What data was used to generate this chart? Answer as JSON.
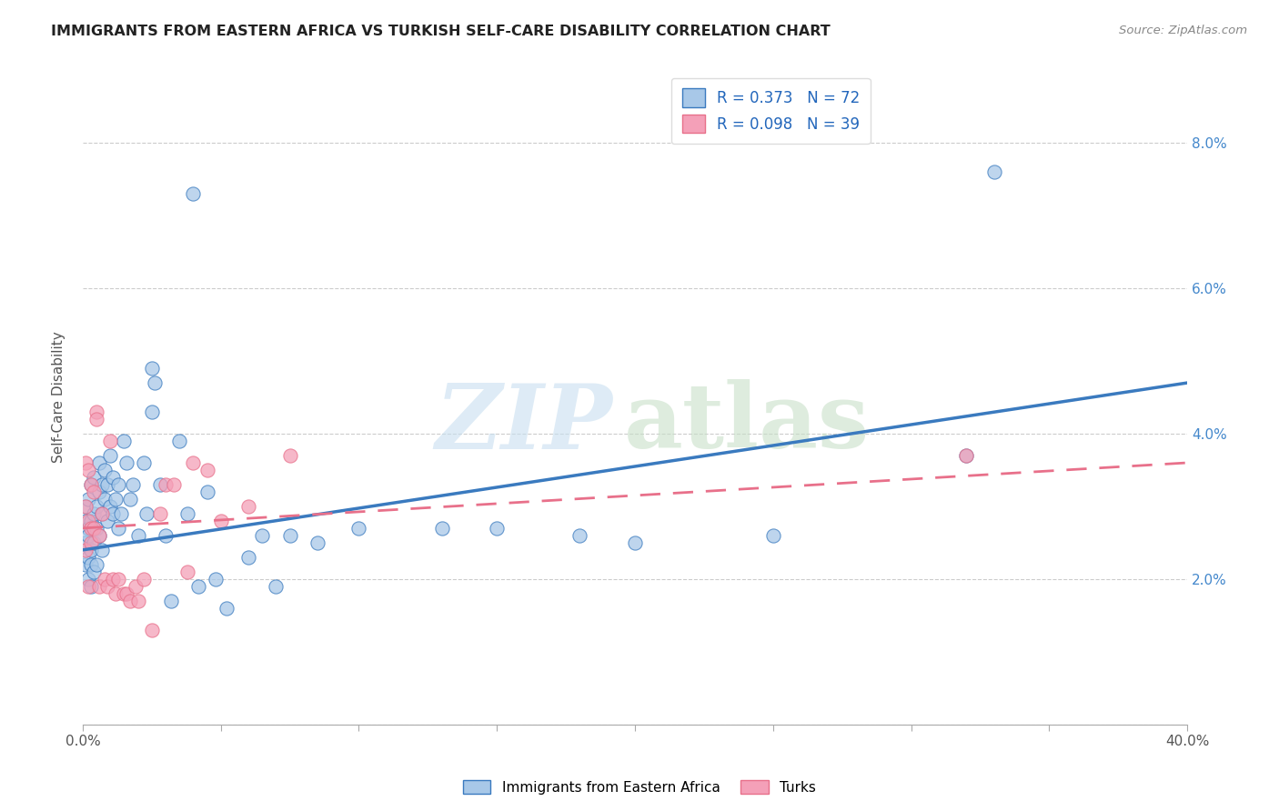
{
  "title": "IMMIGRANTS FROM EASTERN AFRICA VS TURKISH SELF-CARE DISABILITY CORRELATION CHART",
  "source": "Source: ZipAtlas.com",
  "ylabel": "Self-Care Disability",
  "xlim": [
    0.0,
    0.4
  ],
  "ylim": [
    0.0,
    0.09
  ],
  "xtick_major": [
    0.0,
    0.4
  ],
  "xtick_minor": [
    0.05,
    0.1,
    0.15,
    0.2,
    0.25,
    0.3,
    0.35
  ],
  "yticks": [
    0.0,
    0.02,
    0.04,
    0.06,
    0.08
  ],
  "ytick_labels": [
    "",
    "2.0%",
    "4.0%",
    "6.0%",
    "8.0%"
  ],
  "legend_labels": [
    "Immigrants from Eastern Africa",
    "Turks"
  ],
  "R_blue": 0.373,
  "N_blue": 72,
  "R_pink": 0.098,
  "N_pink": 39,
  "color_blue": "#a8c8e8",
  "color_pink": "#f4a0b8",
  "line_blue": "#3a7abf",
  "line_pink": "#e8708a",
  "blue_line_start_y": 0.024,
  "blue_line_end_y": 0.047,
  "pink_line_start_y": 0.027,
  "pink_line_end_y": 0.036,
  "blue_x": [
    0.001,
    0.001,
    0.001,
    0.001,
    0.002,
    0.002,
    0.002,
    0.002,
    0.002,
    0.003,
    0.003,
    0.003,
    0.003,
    0.003,
    0.004,
    0.004,
    0.004,
    0.004,
    0.005,
    0.005,
    0.005,
    0.006,
    0.006,
    0.006,
    0.007,
    0.007,
    0.007,
    0.008,
    0.008,
    0.009,
    0.009,
    0.01,
    0.01,
    0.011,
    0.011,
    0.012,
    0.013,
    0.013,
    0.014,
    0.015,
    0.016,
    0.017,
    0.018,
    0.02,
    0.022,
    0.023,
    0.025,
    0.025,
    0.026,
    0.028,
    0.03,
    0.032,
    0.035,
    0.038,
    0.04,
    0.042,
    0.045,
    0.048,
    0.052,
    0.06,
    0.065,
    0.07,
    0.075,
    0.085,
    0.1,
    0.13,
    0.15,
    0.18,
    0.2,
    0.25,
    0.32,
    0.33
  ],
  "blue_y": [
    0.028,
    0.025,
    0.03,
    0.022,
    0.027,
    0.023,
    0.031,
    0.026,
    0.02,
    0.024,
    0.028,
    0.033,
    0.022,
    0.019,
    0.025,
    0.029,
    0.034,
    0.021,
    0.022,
    0.03,
    0.027,
    0.032,
    0.026,
    0.036,
    0.029,
    0.024,
    0.033,
    0.031,
    0.035,
    0.028,
    0.033,
    0.03,
    0.037,
    0.029,
    0.034,
    0.031,
    0.033,
    0.027,
    0.029,
    0.039,
    0.036,
    0.031,
    0.033,
    0.026,
    0.036,
    0.029,
    0.049,
    0.043,
    0.047,
    0.033,
    0.026,
    0.017,
    0.039,
    0.029,
    0.073,
    0.019,
    0.032,
    0.02,
    0.016,
    0.023,
    0.026,
    0.019,
    0.026,
    0.025,
    0.027,
    0.027,
    0.027,
    0.026,
    0.025,
    0.026,
    0.037,
    0.076
  ],
  "pink_x": [
    0.001,
    0.001,
    0.001,
    0.002,
    0.002,
    0.002,
    0.003,
    0.003,
    0.003,
    0.004,
    0.004,
    0.005,
    0.005,
    0.006,
    0.006,
    0.007,
    0.008,
    0.009,
    0.01,
    0.011,
    0.012,
    0.013,
    0.015,
    0.016,
    0.017,
    0.019,
    0.02,
    0.022,
    0.025,
    0.028,
    0.03,
    0.033,
    0.038,
    0.04,
    0.045,
    0.05,
    0.06,
    0.075,
    0.32
  ],
  "pink_y": [
    0.036,
    0.03,
    0.024,
    0.035,
    0.028,
    0.019,
    0.033,
    0.027,
    0.025,
    0.032,
    0.027,
    0.043,
    0.042,
    0.026,
    0.019,
    0.029,
    0.02,
    0.019,
    0.039,
    0.02,
    0.018,
    0.02,
    0.018,
    0.018,
    0.017,
    0.019,
    0.017,
    0.02,
    0.013,
    0.029,
    0.033,
    0.033,
    0.021,
    0.036,
    0.035,
    0.028,
    0.03,
    0.037,
    0.037
  ]
}
